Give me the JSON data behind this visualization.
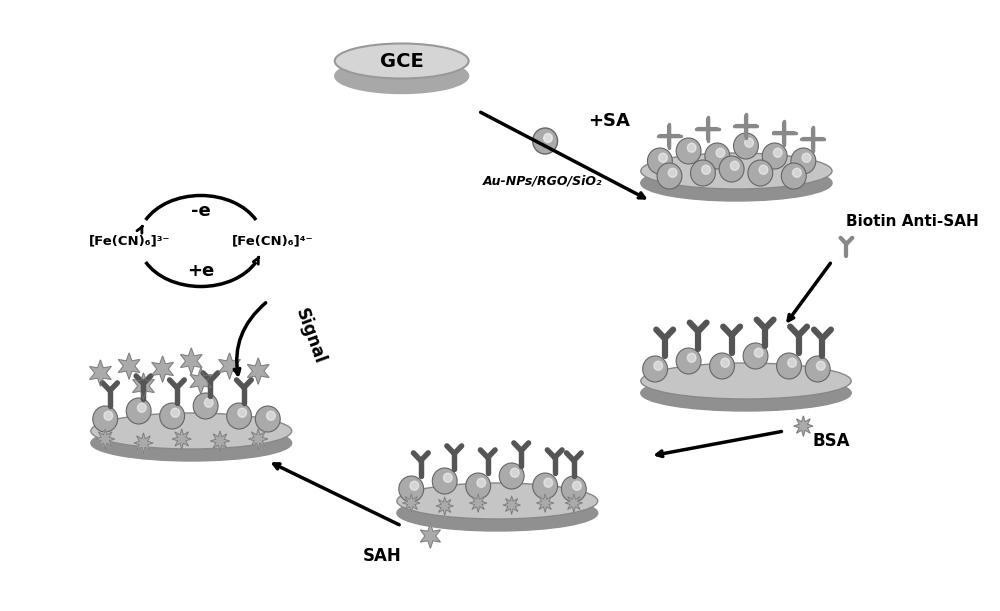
{
  "bg_color": "#ffffff",
  "electrode_color": "#c8c8c8",
  "electrode_edge": "#888888",
  "platform_color": "#b8b8b8",
  "platform_edge": "#888888",
  "nanoparticle_color": "#aaaaaa",
  "nanoparticle_edge": "#666666",
  "antibody_color": "#666666",
  "star_color": "#999999",
  "text_color": "#000000",
  "dark_antibody_color": "#555555",
  "labels": {
    "GCE": "GCE",
    "SA_label": "+SA",
    "AuNPs": "Au-NPs/RGO/SiO₂",
    "Biotin": "Biotin Anti-SAH",
    "BSA": "BSA",
    "SAH": "SAH",
    "Signal": "Signal",
    "minus_e": "-e",
    "plus_e": "+e",
    "fe3": "[Fe(CN)₆]³⁻",
    "fe4": "[Fe(CN)₆]⁴⁻"
  }
}
